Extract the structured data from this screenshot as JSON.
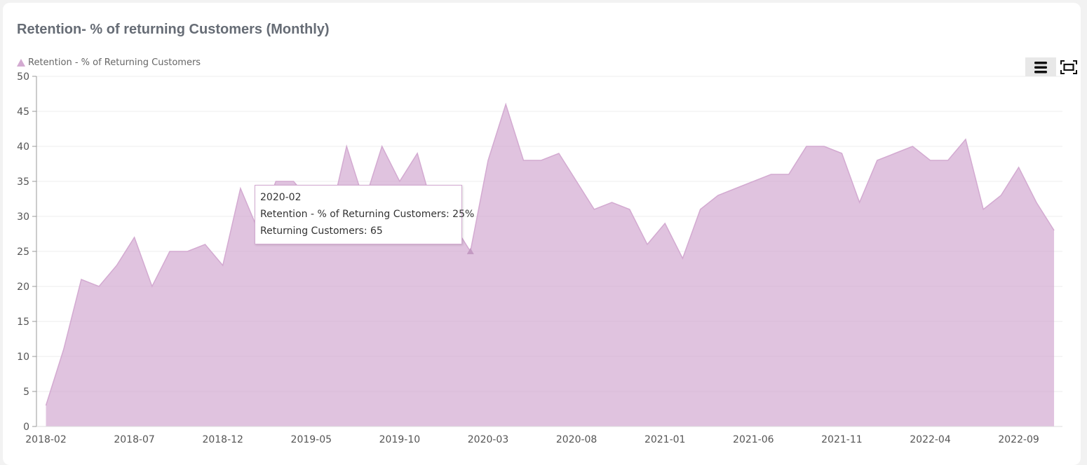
{
  "chart_data": {
    "type": "area",
    "title": "Retention- % of returning Customers (Monthly)",
    "series": [
      {
        "name": "Retention - % of Returning Customers",
        "values": [
          3,
          11,
          21,
          20,
          23,
          27,
          20,
          25,
          25,
          26,
          23,
          34,
          28,
          35,
          35,
          32,
          29,
          40,
          32,
          40,
          35,
          39,
          30,
          29,
          25,
          38,
          46,
          38,
          38,
          39,
          35,
          31,
          32,
          31,
          26,
          29,
          24,
          31,
          33,
          34,
          35,
          36,
          36,
          40,
          40,
          39,
          32,
          38,
          39,
          40,
          38,
          38,
          41,
          31,
          33,
          37,
          32,
          28
        ]
      }
    ],
    "x_start": "2018-02",
    "x_tick_labels": [
      "2018-02",
      "2018-07",
      "2018-12",
      "2019-05",
      "2019-10",
      "2020-03",
      "2020-08",
      "2021-01",
      "2021-06",
      "2021-11",
      "2022-04",
      "2022-09"
    ],
    "ylim": [
      0,
      50
    ],
    "y_ticks": [
      0,
      5,
      10,
      15,
      20,
      25,
      30,
      35,
      40,
      45,
      50
    ],
    "grid": true,
    "legend_position": "top-left",
    "color": "#d3aad1",
    "tooltip": {
      "x_label": "2020-02",
      "line1": "Retention - % of Returning Customers: 25%",
      "line2": "Returning Customers: 65"
    }
  },
  "toolbar": {
    "menu_icon": "hamburger-menu-icon",
    "fullscreen_icon": "fullscreen-icon"
  }
}
